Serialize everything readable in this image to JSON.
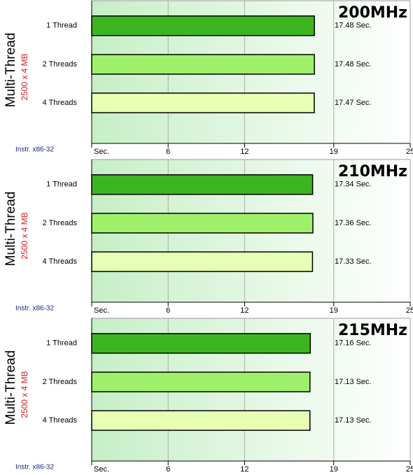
{
  "chart_data": [
    {
      "type": "bar",
      "orientation": "horizontal",
      "title": "200MHz",
      "axis_label": "Multi-Thread",
      "subtitle": "2500 x 4 MB",
      "note": "Instr. x86-32",
      "categories": [
        "1 Thread",
        "2 Threads",
        "4 Threads"
      ],
      "values": [
        17.48,
        17.48,
        17.47
      ],
      "value_labels": [
        "17.48 Sec.",
        "17.48 Sec.",
        "17.47 Sec."
      ],
      "colors": [
        "#3cb521",
        "#9ef06a",
        "#e6ffb4"
      ],
      "xlim": [
        0,
        25
      ],
      "xticks": [
        {
          "value": 0,
          "label": "Sec."
        },
        6,
        12,
        19,
        25
      ],
      "grid": true
    },
    {
      "type": "bar",
      "orientation": "horizontal",
      "title": "210MHz",
      "axis_label": "Multi-Thread",
      "subtitle": "2500 x 4 MB",
      "note": "Instr. x86-32",
      "categories": [
        "1 Thread",
        "2 Threads",
        "4 Threads"
      ],
      "values": [
        17.34,
        17.36,
        17.33
      ],
      "value_labels": [
        "17.34 Sec.",
        "17.36 Sec.",
        "17.33 Sec."
      ],
      "colors": [
        "#3cb521",
        "#9ef06a",
        "#e6ffb4"
      ],
      "xlim": [
        0,
        25
      ],
      "xticks": [
        {
          "value": 0,
          "label": "Sec."
        },
        6,
        12,
        19,
        25
      ],
      "grid": true
    },
    {
      "type": "bar",
      "orientation": "horizontal",
      "title": "215MHz",
      "axis_label": "Multi-Thread",
      "subtitle": "2500 x 4 MB",
      "note": "Instr. x86-32",
      "categories": [
        "1 Thread",
        "2 Threads",
        "4 Threads"
      ],
      "values": [
        17.16,
        17.13,
        17.13
      ],
      "value_labels": [
        "17.16 Sec.",
        "17.13 Sec.",
        "17.13 Sec."
      ],
      "colors": [
        "#3cb521",
        "#9ef06a",
        "#e6ffb4"
      ],
      "xlim": [
        0,
        25
      ],
      "xticks": [
        {
          "value": 0,
          "label": "Sec."
        },
        6,
        12,
        19,
        25
      ],
      "grid": true
    }
  ]
}
